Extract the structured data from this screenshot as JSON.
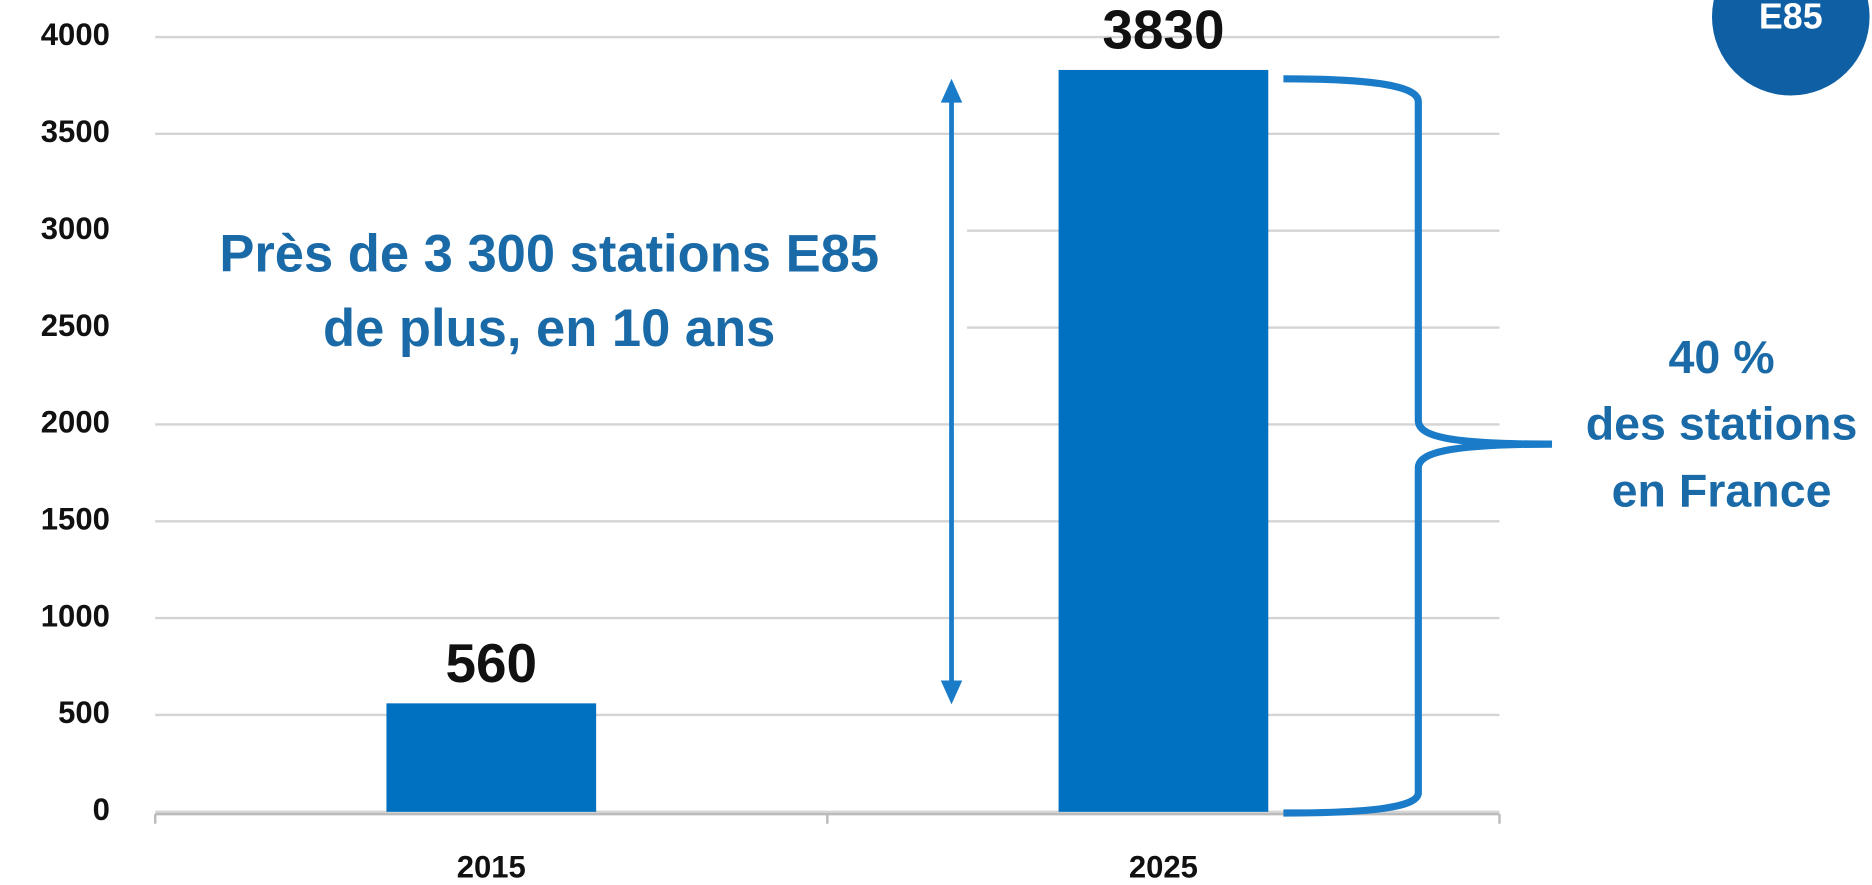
{
  "chart_data": {
    "type": "bar",
    "badge": "E85",
    "categories": [
      "2015",
      "2025"
    ],
    "values": [
      560,
      3830
    ],
    "color": "#0070c0",
    "ylim": [
      0,
      4000
    ],
    "yticks": [
      0,
      500,
      1000,
      1500,
      2000,
      2500,
      3000,
      3500,
      4000
    ],
    "grid": true,
    "annotations": [
      "Près de 3 300 stations E85",
      "de plus, en 10 ans",
      "40 %",
      "des stations",
      "en France"
    ]
  }
}
